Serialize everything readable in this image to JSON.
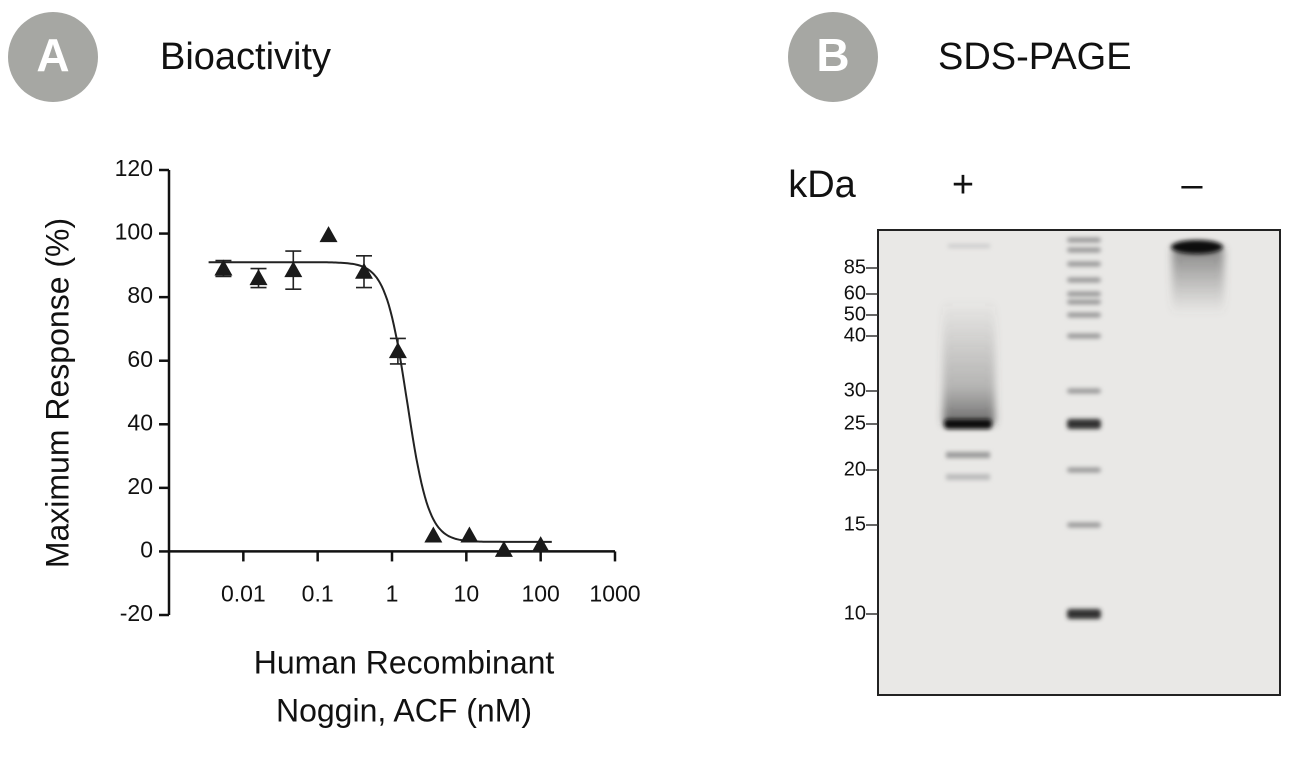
{
  "chart_data": {
    "type": "scatter",
    "letter": "A",
    "title": "Bioactivity",
    "ylabel": "Maximum Response (%)",
    "xlabel": [
      "Human Recombinant",
      "Noggin, ACF (nM)"
    ],
    "x": [
      0.0054,
      0.016,
      0.047,
      0.14,
      0.42,
      1.2,
      3.6,
      11,
      32,
      100
    ],
    "values": [
      89,
      86,
      88.5,
      99.5,
      88,
      63,
      5,
      5,
      0.5,
      2
    ],
    "errors": [
      2.5,
      3,
      6,
      null,
      5,
      4,
      null,
      null,
      null,
      null
    ],
    "fit": {
      "top": 91,
      "bottom": 3,
      "ec50": 1.6,
      "hill": 3
    },
    "color": "#1a1a1a",
    "xscale": "log",
    "xlim": [
      0.001,
      1000
    ],
    "xticks": [
      0.01,
      0.1,
      1,
      10,
      100,
      1000
    ],
    "ylim": [
      -20,
      120
    ],
    "yticks": [
      -20,
      0,
      20,
      40,
      60,
      80,
      100,
      120
    ]
  },
  "gel": {
    "letter": "B",
    "title": "SDS-PAGE",
    "unit": "kDa",
    "lanes": [
      "+",
      "–"
    ],
    "markers": [
      85,
      60,
      50,
      40,
      30,
      25,
      20,
      15,
      10
    ]
  }
}
